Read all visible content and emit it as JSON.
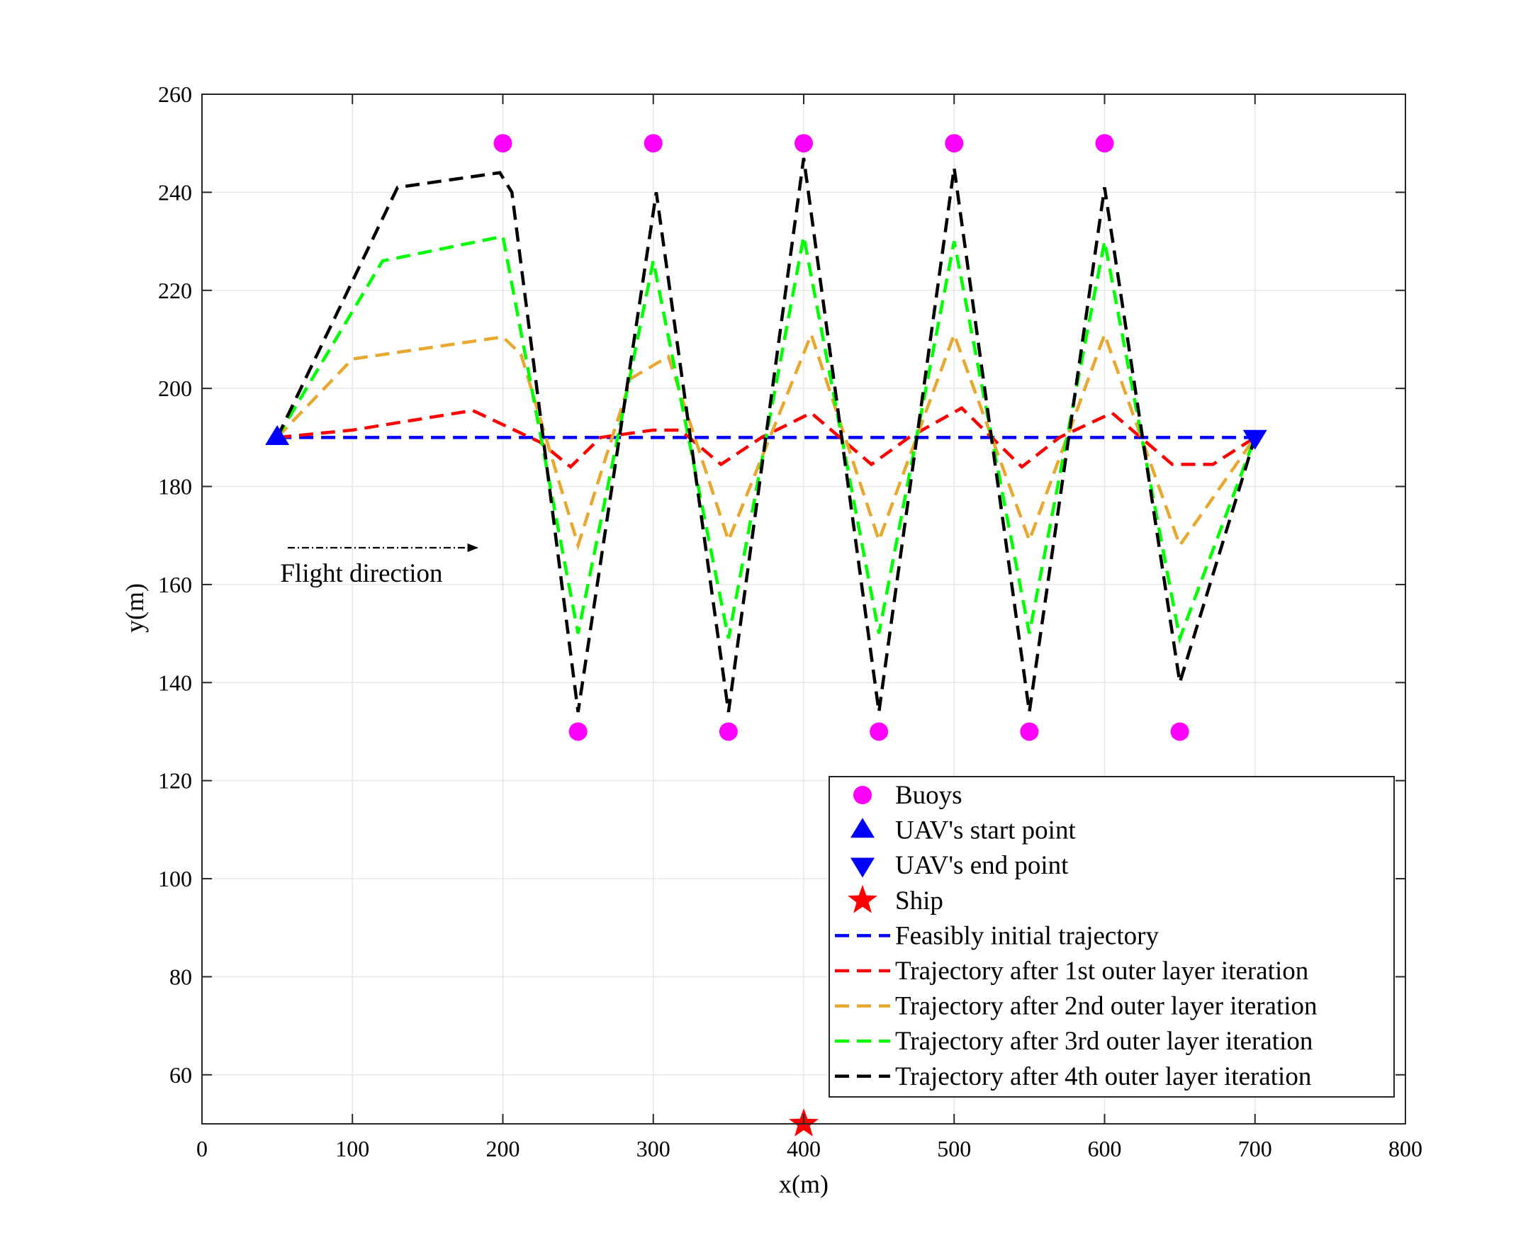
{
  "chart_data": {
    "type": "scatter",
    "title": "",
    "xlabel": "x(m)",
    "ylabel": "y(m)",
    "xlim": [
      0,
      800
    ],
    "ylim": [
      50,
      260
    ],
    "xticks": [
      0,
      100,
      200,
      300,
      400,
      500,
      600,
      700,
      800
    ],
    "yticks": [
      60,
      80,
      100,
      120,
      140,
      160,
      180,
      200,
      220,
      240,
      260
    ],
    "grid": true,
    "legend_position": "bottom-right",
    "markers": [
      {
        "name": "Buoys",
        "shape": "circle",
        "color": "#ff00ff",
        "points": [
          [
            200,
            250
          ],
          [
            300,
            250
          ],
          [
            400,
            250
          ],
          [
            500,
            250
          ],
          [
            600,
            250
          ],
          [
            250,
            130
          ],
          [
            350,
            130
          ],
          [
            450,
            130
          ],
          [
            550,
            130
          ],
          [
            650,
            130
          ]
        ]
      },
      {
        "name": "UAV's start point",
        "shape": "triangle-up",
        "color": "#0000ff",
        "points": [
          [
            50,
            190
          ]
        ]
      },
      {
        "name": "UAV's end point",
        "shape": "triangle-down",
        "color": "#0000ff",
        "points": [
          [
            700,
            190
          ]
        ]
      },
      {
        "name": "Ship",
        "shape": "star",
        "color": "#ff0000",
        "points": [
          [
            400,
            50
          ]
        ]
      }
    ],
    "series": [
      {
        "name": "Feasibly initial trajectory",
        "color": "#0000ff",
        "points": [
          [
            50,
            190
          ],
          [
            700,
            190
          ]
        ]
      },
      {
        "name": "Trajectory after 1st outer layer iteration",
        "color": "#ff0000",
        "points": [
          [
            50,
            190
          ],
          [
            100,
            191.5
          ],
          [
            180,
            195.5
          ],
          [
            225,
            189
          ],
          [
            245,
            184
          ],
          [
            265,
            190
          ],
          [
            300,
            191.5
          ],
          [
            318,
            191.5
          ],
          [
            345,
            184.5
          ],
          [
            372,
            190
          ],
          [
            405,
            195
          ],
          [
            445,
            184.5
          ],
          [
            470,
            190
          ],
          [
            505,
            196
          ],
          [
            545,
            184
          ],
          [
            570,
            190
          ],
          [
            605,
            195
          ],
          [
            645,
            184.5
          ],
          [
            672,
            184.5
          ],
          [
            700,
            190
          ]
        ]
      },
      {
        "name": "Trajectory after 2nd outer layer iteration",
        "color": "#e8a830",
        "points": [
          [
            50,
            190
          ],
          [
            100,
            206
          ],
          [
            200,
            210.5
          ],
          [
            212,
            207
          ],
          [
            250,
            168
          ],
          [
            285,
            202
          ],
          [
            310,
            206.5
          ],
          [
            350,
            169
          ],
          [
            405,
            211
          ],
          [
            450,
            169
          ],
          [
            500,
            211
          ],
          [
            550,
            169
          ],
          [
            600,
            211
          ],
          [
            650,
            168
          ],
          [
            700,
            190
          ]
        ]
      },
      {
        "name": "Trajectory after 3rd outer layer iteration",
        "color": "#00ff00",
        "points": [
          [
            50,
            190
          ],
          [
            120,
            226
          ],
          [
            200,
            231
          ],
          [
            250,
            150
          ],
          [
            300,
            226
          ],
          [
            350,
            149
          ],
          [
            400,
            231
          ],
          [
            450,
            150
          ],
          [
            500,
            230
          ],
          [
            550,
            150
          ],
          [
            600,
            230
          ],
          [
            650,
            149
          ],
          [
            700,
            190
          ]
        ]
      },
      {
        "name": "Trajectory after 4th outer layer iteration",
        "color": "#000000",
        "points": [
          [
            50,
            190
          ],
          [
            130,
            241
          ],
          [
            198,
            244
          ],
          [
            206,
            240
          ],
          [
            250,
            134
          ],
          [
            302,
            240
          ],
          [
            350,
            134
          ],
          [
            400,
            247
          ],
          [
            450,
            134
          ],
          [
            500,
            245
          ],
          [
            550,
            134
          ],
          [
            600,
            241
          ],
          [
            650,
            140
          ],
          [
            700,
            190
          ]
        ]
      }
    ],
    "annotations": [
      {
        "text": "Flight direction",
        "arrow_from": [
          57,
          167.5
        ],
        "arrow_to": [
          183,
          167.5
        ]
      }
    ]
  }
}
